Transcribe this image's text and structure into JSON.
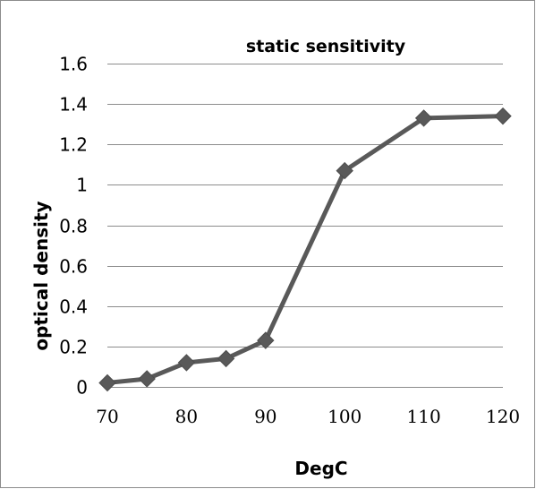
{
  "chart_data": {
    "type": "line",
    "title": "static sensitivity",
    "xlabel": "DegC",
    "ylabel": "optical density",
    "x": [
      70,
      75,
      80,
      85,
      90,
      100,
      110,
      120
    ],
    "series": [
      {
        "values": [
          0.02,
          0.04,
          0.12,
          0.14,
          0.23,
          1.07,
          1.33,
          1.34
        ]
      }
    ],
    "xlim": [
      70,
      120
    ],
    "ylim": [
      0,
      1.6
    ],
    "xticks": [
      "70",
      "80",
      "90",
      "100",
      "110",
      "120"
    ],
    "yticks": [
      "0",
      "0.2",
      "0.4",
      "0.6",
      "0.8",
      "1",
      "1.2",
      "1.4",
      "1.6"
    ],
    "grid": "horizontal",
    "legend": "none",
    "line_color": "#595959",
    "marker": "diamond"
  }
}
